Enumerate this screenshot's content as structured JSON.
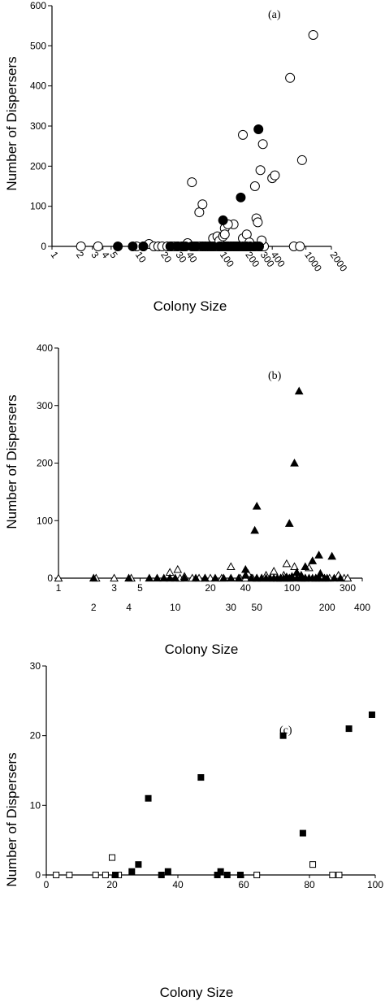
{
  "chart_data": [
    {
      "type": "scatter",
      "annotation": "(a)",
      "xlabel": "Colony Size",
      "ylabel": "Number of Dispersers",
      "x_scale": "log",
      "xlim": [
        1,
        2000
      ],
      "ylim": [
        0,
        600
      ],
      "x_ticks": [
        1,
        2,
        3,
        4,
        5,
        10,
        20,
        30,
        40,
        100,
        200,
        300,
        400,
        1000,
        2000
      ],
      "x_tick_labels": [
        "1",
        "2",
        "3",
        "4",
        "5",
        "10",
        "20",
        "30",
        "40",
        "100",
        "200",
        "300",
        "400",
        "1000",
        "2000"
      ],
      "y_ticks": [
        0,
        100,
        200,
        300,
        400,
        500,
        600
      ],
      "y_tick_labels": [
        "0",
        "100",
        "200",
        "300",
        "400",
        "500",
        "600"
      ],
      "marker": "circle",
      "series": [
        {
          "fill": "open",
          "points": [
            [
              2.2,
              0
            ],
            [
              3.5,
              0
            ],
            [
              10,
              0
            ],
            [
              12,
              0
            ],
            [
              14,
              6
            ],
            [
              16,
              0
            ],
            [
              18,
              0
            ],
            [
              20,
              0
            ],
            [
              23,
              0
            ],
            [
              26,
              0
            ],
            [
              28,
              0
            ],
            [
              31,
              0
            ],
            [
              34,
              0
            ],
            [
              36,
              0
            ],
            [
              40,
              8
            ],
            [
              45,
              0
            ],
            [
              48,
              0
            ],
            [
              52,
              0
            ],
            [
              56,
              0
            ],
            [
              60,
              0
            ],
            [
              65,
              0
            ],
            [
              70,
              0
            ],
            [
              75,
              0
            ],
            [
              80,
              0
            ],
            [
              85,
              0
            ],
            [
              90,
              0
            ],
            [
              95,
              0
            ],
            [
              100,
              0
            ],
            [
              105,
              0
            ],
            [
              110,
              0
            ],
            [
              115,
              0
            ],
            [
              120,
              0
            ],
            [
              130,
              0
            ],
            [
              140,
              0
            ],
            [
              150,
              0
            ],
            [
              160,
              0
            ],
            [
              170,
              0
            ],
            [
              180,
              0
            ],
            [
              190,
              0
            ],
            [
              200,
              0
            ],
            [
              210,
              0
            ],
            [
              220,
              0
            ],
            [
              230,
              0
            ],
            [
              240,
              0
            ],
            [
              250,
              0
            ],
            [
              270,
              0
            ],
            [
              290,
              0
            ],
            [
              300,
              0
            ],
            [
              320,
              0
            ],
            [
              720,
              0
            ],
            [
              850,
              0
            ],
            [
              80,
              20
            ],
            [
              90,
              25
            ],
            [
              95,
              14
            ],
            [
              105,
              25
            ],
            [
              110,
              45
            ],
            [
              140,
              55
            ],
            [
              180,
              20
            ],
            [
              200,
              30
            ],
            [
              215,
              10
            ],
            [
              260,
              70
            ],
            [
              270,
              60
            ],
            [
              300,
              15
            ],
            [
              45,
              160
            ],
            [
              55,
              85
            ],
            [
              60,
              105
            ],
            [
              110,
              30
            ],
            [
              120,
              55
            ],
            [
              180,
              278
            ],
            [
              250,
              150
            ],
            [
              290,
              190
            ],
            [
              310,
              255
            ],
            [
              400,
              170
            ],
            [
              430,
              177
            ],
            [
              650,
              420
            ],
            [
              900,
              215
            ],
            [
              1220,
              527
            ]
          ]
        },
        {
          "fill": "filled",
          "points": [
            [
              6,
              0
            ],
            [
              9,
              0
            ],
            [
              12,
              0
            ],
            [
              25,
              0
            ],
            [
              30,
              0
            ],
            [
              35,
              0
            ],
            [
              38,
              0
            ],
            [
              45,
              0
            ],
            [
              50,
              0
            ],
            [
              60,
              0
            ],
            [
              65,
              0
            ],
            [
              75,
              0
            ],
            [
              80,
              0
            ],
            [
              95,
              0
            ],
            [
              100,
              0
            ],
            [
              110,
              0
            ],
            [
              120,
              0
            ],
            [
              130,
              0
            ],
            [
              140,
              0
            ],
            [
              150,
              0
            ],
            [
              160,
              0
            ],
            [
              180,
              0
            ],
            [
              200,
              0
            ],
            [
              220,
              0
            ],
            [
              250,
              0
            ],
            [
              280,
              0
            ],
            [
              105,
              65
            ],
            [
              170,
              122
            ],
            [
              275,
              292
            ]
          ]
        }
      ]
    },
    {
      "type": "scatter",
      "annotation": "(b)",
      "xlabel": "Colony Size",
      "ylabel": "Number of Dispersers",
      "x_scale": "log",
      "xlim": [
        1,
        400
      ],
      "ylim": [
        0,
        400
      ],
      "x_ticks": [
        1,
        2,
        3,
        4,
        5,
        10,
        20,
        30,
        40,
        50,
        100,
        200,
        300,
        400
      ],
      "x_tick_labels": [
        "1",
        "2",
        "3",
        "4",
        "5",
        "10",
        "20",
        "30",
        "40",
        "50",
        "100",
        "200",
        "300",
        "400"
      ],
      "y_ticks": [
        0,
        100,
        200,
        300,
        400
      ],
      "y_tick_labels": [
        "0",
        "100",
        "200",
        "300",
        "400"
      ],
      "marker": "triangle",
      "series": [
        {
          "fill": "open",
          "points": [
            [
              1,
              0
            ],
            [
              2.1,
              0
            ],
            [
              3,
              0
            ],
            [
              4.2,
              0
            ],
            [
              9,
              10
            ],
            [
              10.5,
              15
            ],
            [
              11,
              0
            ],
            [
              12,
              3
            ],
            [
              14,
              0
            ],
            [
              16,
              0
            ],
            [
              18,
              0
            ],
            [
              20,
              0
            ],
            [
              25,
              0
            ],
            [
              30,
              20
            ],
            [
              36,
              0
            ],
            [
              40,
              0
            ],
            [
              42,
              8
            ],
            [
              46,
              0
            ],
            [
              50,
              0
            ],
            [
              55,
              0
            ],
            [
              60,
              5
            ],
            [
              65,
              0
            ],
            [
              70,
              12
            ],
            [
              75,
              0
            ],
            [
              80,
              0
            ],
            [
              85,
              5
            ],
            [
              90,
              25
            ],
            [
              95,
              0
            ],
            [
              105,
              20
            ],
            [
              120,
              0
            ],
            [
              130,
              0
            ],
            [
              140,
              18
            ],
            [
              160,
              0
            ],
            [
              180,
              0
            ],
            [
              210,
              0
            ],
            [
              250,
              5
            ],
            [
              280,
              0
            ],
            [
              300,
              0
            ]
          ]
        },
        {
          "fill": "filled",
          "points": [
            [
              2,
              0
            ],
            [
              4,
              0
            ],
            [
              6,
              0
            ],
            [
              7,
              0
            ],
            [
              8,
              0
            ],
            [
              9,
              0
            ],
            [
              10,
              0
            ],
            [
              12,
              0
            ],
            [
              15,
              0
            ],
            [
              18,
              0
            ],
            [
              22,
              0
            ],
            [
              26,
              0
            ],
            [
              30,
              0
            ],
            [
              35,
              0
            ],
            [
              40,
              5
            ],
            [
              45,
              0
            ],
            [
              50,
              0
            ],
            [
              55,
              0
            ],
            [
              60,
              0
            ],
            [
              65,
              0
            ],
            [
              70,
              0
            ],
            [
              75,
              0
            ],
            [
              80,
              0
            ],
            [
              85,
              0
            ],
            [
              90,
              0
            ],
            [
              95,
              0
            ],
            [
              100,
              0
            ],
            [
              110,
              0
            ],
            [
              120,
              0
            ],
            [
              130,
              0
            ],
            [
              140,
              0
            ],
            [
              150,
              0
            ],
            [
              160,
              0
            ],
            [
              170,
              0
            ],
            [
              190,
              0
            ],
            [
              200,
              0
            ],
            [
              230,
              0
            ],
            [
              260,
              0
            ],
            [
              40,
              15
            ],
            [
              50,
              125
            ],
            [
              48,
              83
            ],
            [
              95,
              95
            ],
            [
              105,
              200
            ],
            [
              115,
              325
            ],
            [
              120,
              5
            ],
            [
              150,
              30
            ],
            [
              170,
              40
            ],
            [
              175,
              8
            ],
            [
              220,
              38
            ],
            [
              110,
              10
            ],
            [
              130,
              20
            ],
            [
              90,
              2
            ],
            [
              100,
              3
            ]
          ]
        }
      ]
    },
    {
      "type": "scatter",
      "annotation": "(c)",
      "xlabel": "Colony Size",
      "ylabel": "Number of Dispersers",
      "x_scale": "linear",
      "xlim": [
        0,
        100
      ],
      "ylim": [
        0,
        30
      ],
      "x_ticks": [
        0,
        20,
        40,
        60,
        80,
        100
      ],
      "x_tick_labels": [
        "0",
        "20",
        "40",
        "60",
        "80",
        "100"
      ],
      "y_ticks": [
        0,
        10,
        20,
        30
      ],
      "y_tick_labels": [
        "0",
        "10",
        "20",
        "30"
      ],
      "marker": "square",
      "series": [
        {
          "fill": "open",
          "points": [
            [
              3,
              0
            ],
            [
              7,
              0
            ],
            [
              15,
              0
            ],
            [
              18,
              0
            ],
            [
              20,
              2.5
            ],
            [
              22,
              0
            ],
            [
              64,
              0
            ],
            [
              81,
              1.5
            ],
            [
              87,
              0
            ],
            [
              89,
              0
            ]
          ]
        },
        {
          "fill": "filled",
          "points": [
            [
              21,
              0
            ],
            [
              26,
              0.5
            ],
            [
              28,
              1.5
            ],
            [
              31,
              11
            ],
            [
              35,
              0
            ],
            [
              37,
              0.5
            ],
            [
              47,
              14
            ],
            [
              52,
              0
            ],
            [
              53,
              0.5
            ],
            [
              55,
              0
            ],
            [
              59,
              0
            ],
            [
              72,
              20
            ],
            [
              78,
              6
            ],
            [
              92,
              21
            ],
            [
              99,
              23
            ]
          ]
        }
      ]
    }
  ]
}
